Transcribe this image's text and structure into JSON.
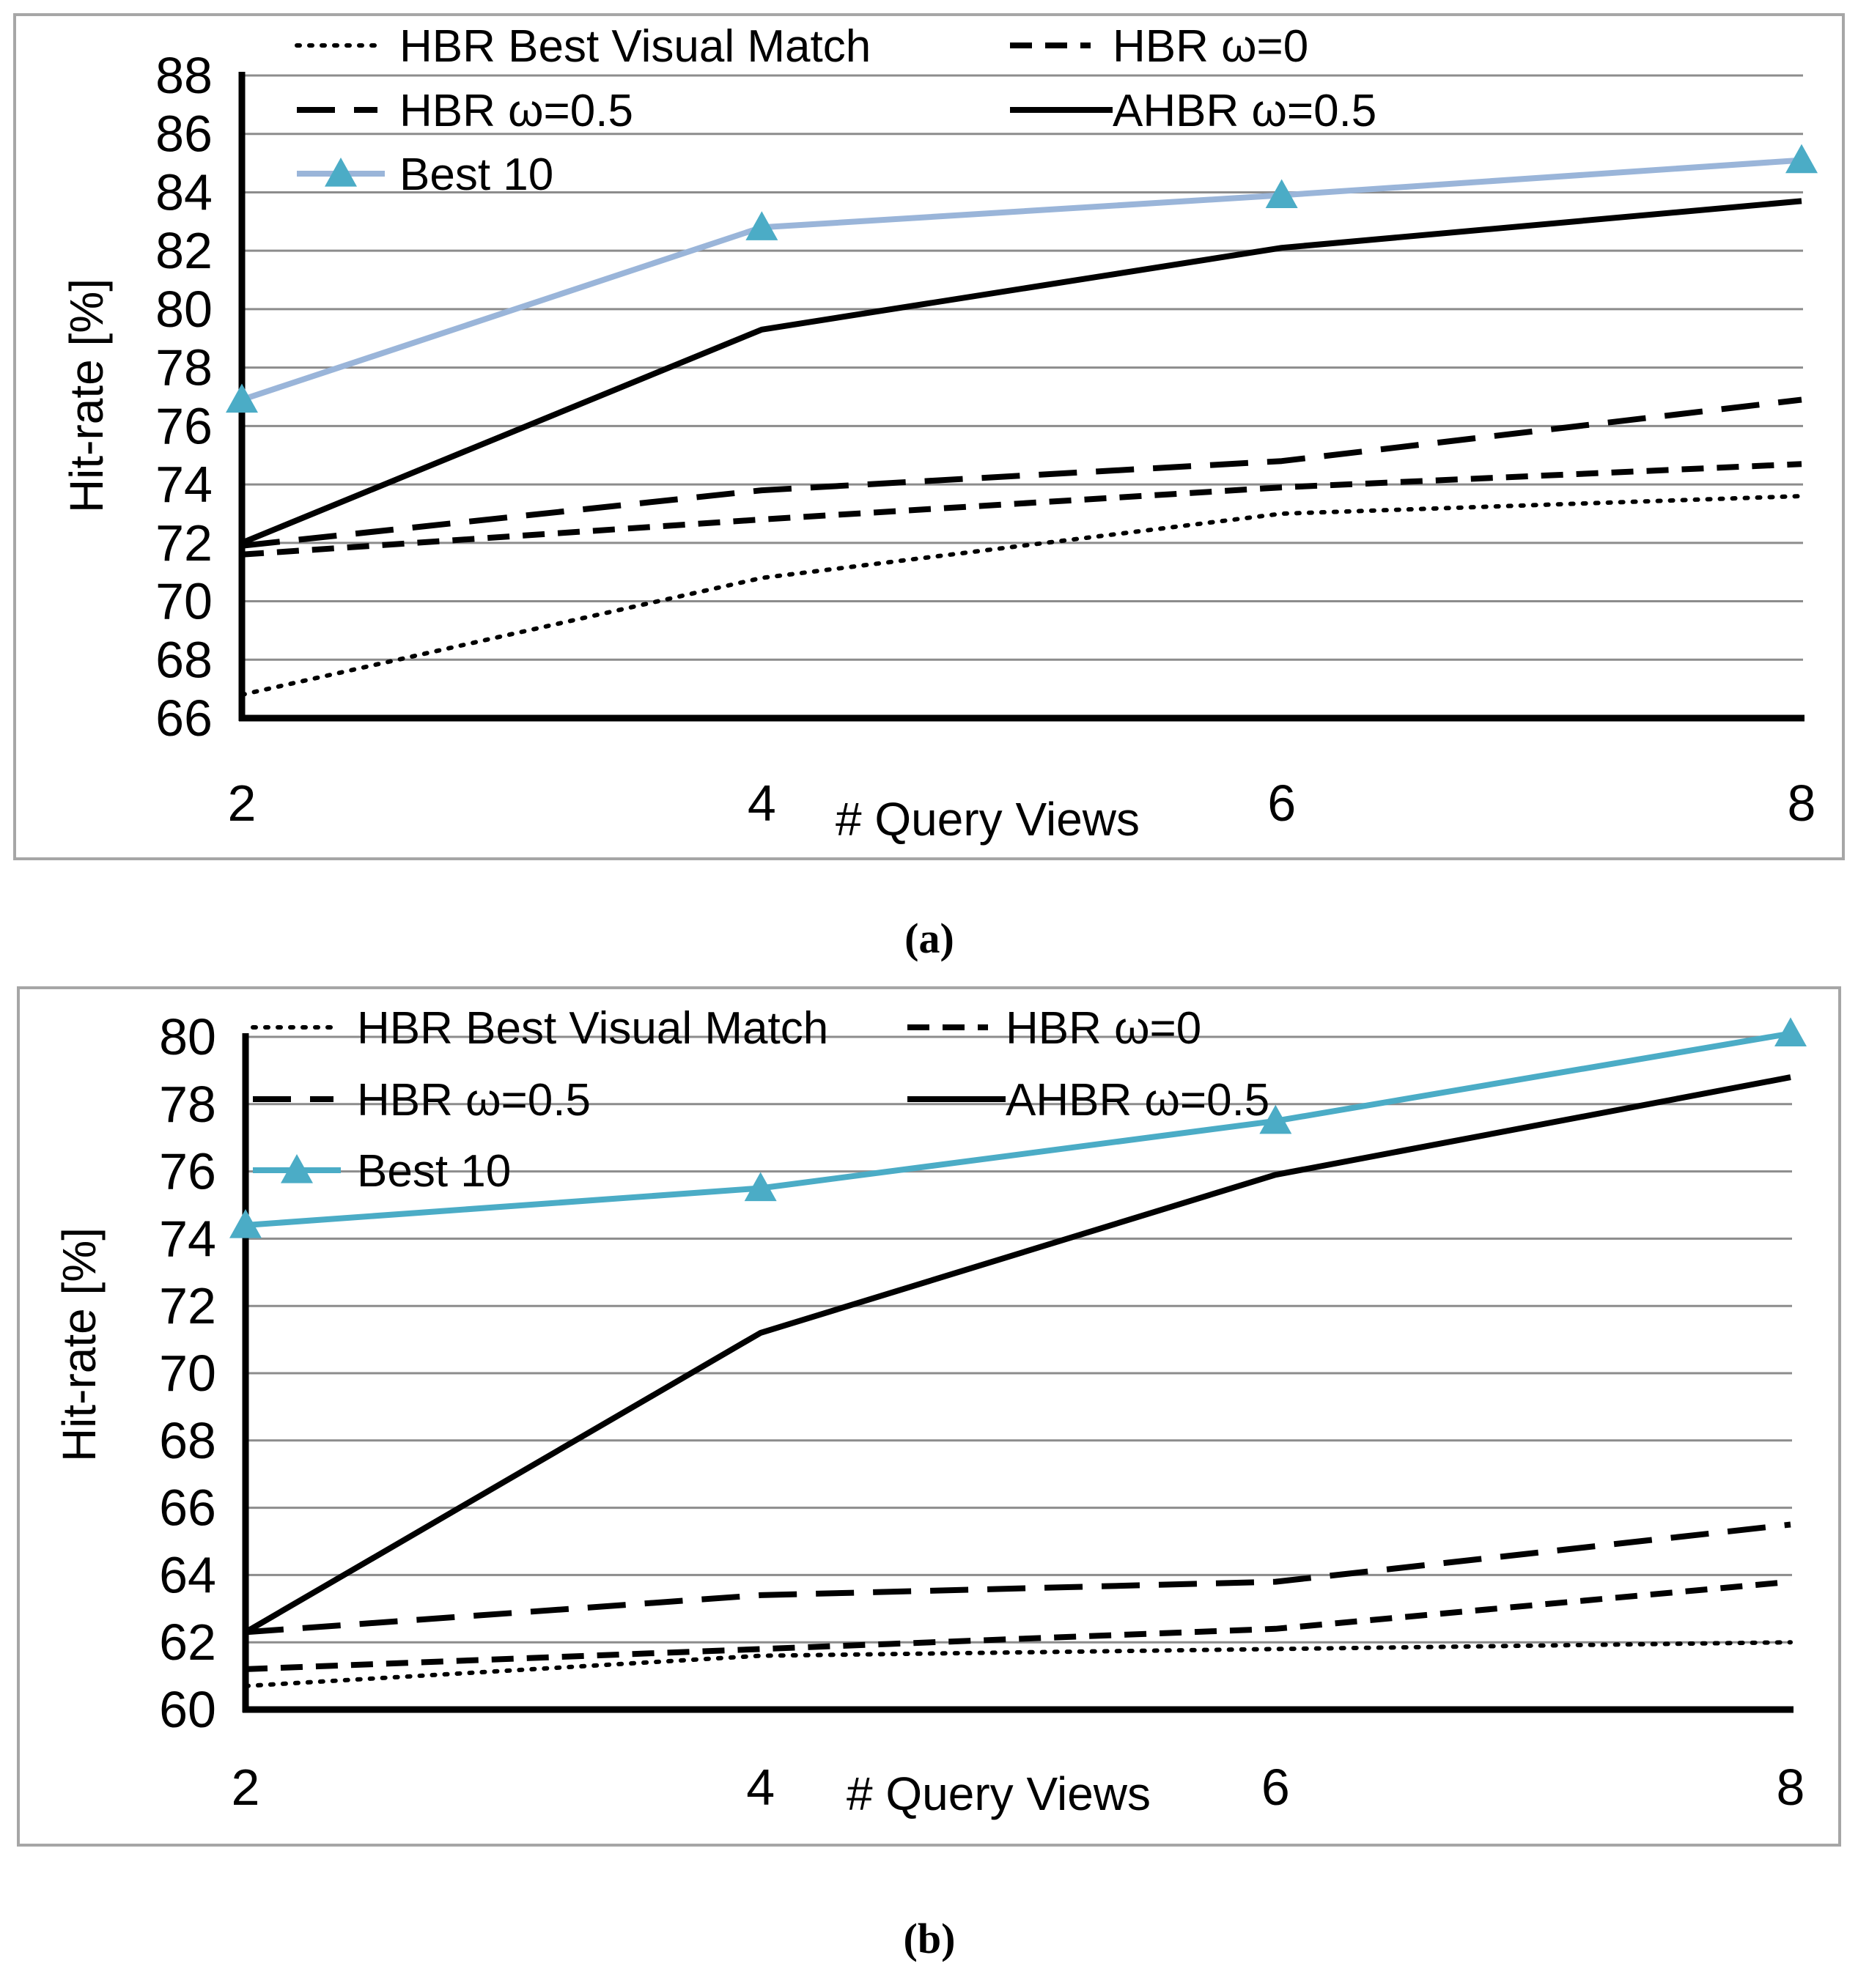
{
  "chart_data": [
    {
      "type": "line",
      "caption": "(a)",
      "xlabel": "# Query Views",
      "ylabel": "Hit-rate [%]",
      "categories": [
        "2",
        "4",
        "6",
        "8"
      ],
      "x": [
        2,
        4,
        6,
        8
      ],
      "ylim": [
        66,
        88
      ],
      "yticks": [
        "66",
        "68",
        "70",
        "72",
        "74",
        "76",
        "78",
        "80",
        "82",
        "84",
        "86",
        "88"
      ],
      "grid": true,
      "legend_position": "top",
      "series": [
        {
          "name": "HBR Best Visual Match",
          "style": "dotted",
          "color": "#000000",
          "values": [
            66.8,
            70.8,
            73.0,
            73.6
          ]
        },
        {
          "name": "HBR ω=0",
          "style": "short-dash",
          "color": "#000000",
          "values": [
            71.6,
            72.8,
            73.9,
            74.7
          ]
        },
        {
          "name": "HBR ω=0.5",
          "style": "long-dash",
          "color": "#000000",
          "values": [
            71.9,
            73.8,
            74.8,
            76.9
          ]
        },
        {
          "name": "AHBR ω=0.5",
          "style": "solid",
          "color": "#000000",
          "values": [
            72.0,
            79.3,
            82.1,
            83.7
          ]
        },
        {
          "name": "Best 10",
          "style": "solid-marker",
          "color": "#9ab5d9",
          "marker_color": "#4bacc6",
          "values": [
            76.9,
            82.8,
            83.9,
            85.1
          ]
        }
      ]
    },
    {
      "type": "line",
      "caption": "(b)",
      "xlabel": "# Query Views",
      "ylabel": "Hit-rate [%]",
      "categories": [
        "2",
        "4",
        "6",
        "8"
      ],
      "x": [
        2,
        4,
        6,
        8
      ],
      "ylim": [
        60,
        80
      ],
      "yticks": [
        "60",
        "62",
        "64",
        "66",
        "68",
        "70",
        "72",
        "74",
        "76",
        "78",
        "80"
      ],
      "grid": true,
      "legend_position": "top",
      "series": [
        {
          "name": "HBR Best Visual Match",
          "style": "dotted",
          "color": "#000000",
          "values": [
            60.7,
            61.6,
            61.8,
            62.0
          ]
        },
        {
          "name": "HBR ω=0",
          "style": "short-dash",
          "color": "#000000",
          "values": [
            61.2,
            61.8,
            62.4,
            63.8
          ]
        },
        {
          "name": "HBR ω=0.5",
          "style": "long-dash",
          "color": "#000000",
          "values": [
            62.3,
            63.4,
            63.8,
            65.5
          ]
        },
        {
          "name": "AHBR ω=0.5",
          "style": "solid",
          "color": "#000000",
          "values": [
            62.3,
            71.2,
            75.9,
            78.8
          ]
        },
        {
          "name": "Best 10",
          "style": "solid-marker",
          "color": "#4bacc6",
          "marker_color": "#4bacc6",
          "values": [
            74.4,
            75.5,
            77.5,
            80.1
          ]
        }
      ]
    }
  ]
}
